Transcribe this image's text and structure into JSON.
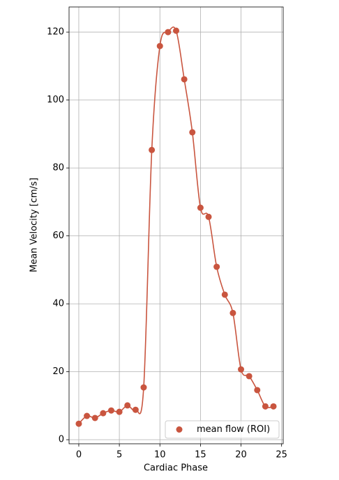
{
  "chart_data": {
    "type": "scatter",
    "x_label": "Cardiac Phase",
    "y_label": "Mean Velocity [cm/s]",
    "x": [
      0,
      1,
      2,
      3,
      4,
      5,
      6,
      7,
      8,
      9,
      10,
      11,
      12,
      13,
      14,
      15,
      16,
      17,
      18,
      19,
      20,
      21,
      22,
      23,
      24
    ],
    "series": [
      {
        "name": "mean flow (ROI)",
        "color": "#c9553f",
        "values": [
          4.7,
          7.0,
          6.4,
          7.8,
          8.6,
          8.2,
          10.1,
          8.8,
          15.4,
          85.3,
          115.9,
          120.0,
          120.4,
          106.1,
          90.5,
          68.3,
          65.6,
          50.9,
          42.7,
          37.3,
          20.7,
          18.7,
          14.6,
          9.8,
          9.8
        ]
      }
    ],
    "smooth_line": true,
    "xlim": [
      -1.2,
      25.2
    ],
    "ylim": [
      -1.2,
      127.4
    ],
    "xticks": [
      0,
      5,
      10,
      15,
      20,
      25
    ],
    "yticks": [
      0,
      20,
      40,
      60,
      80,
      100,
      120
    ],
    "grid": true,
    "legend_position": "lower right"
  }
}
